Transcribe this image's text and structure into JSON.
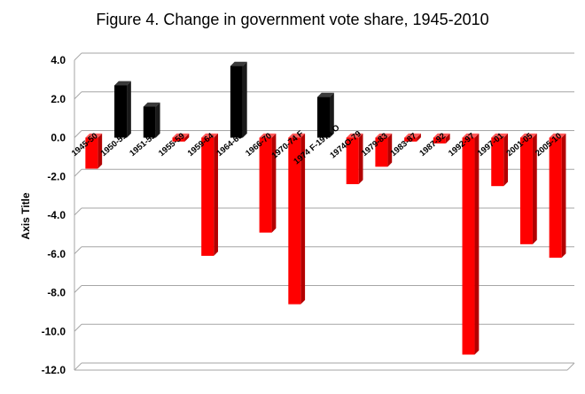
{
  "chart_data": {
    "type": "bar",
    "title": "Figure 4. Change in government vote share, 1945-2010",
    "xlabel": "",
    "ylabel": "Axis Title",
    "ylim": [
      -12,
      4
    ],
    "ytick_step": 2,
    "yticks": [
      "4.0",
      "2.0",
      "0.0",
      "-2.0",
      "-4.0",
      "-6.0",
      "-8.0",
      "-10.0",
      "-12.0"
    ],
    "grid": true,
    "legend": "none",
    "rendering": "3d-bar",
    "categories": [
      "1945-50",
      "1950-51",
      "1951-55",
      "1955-59",
      "1959-64",
      "1964-66",
      "1966-70",
      "1970-74 F",
      "1974 F-1974 O",
      "1974O-79",
      "1979-83",
      "1983-87",
      "1987-92",
      "1992-97",
      "1997-01",
      "2001-05",
      "2005-10"
    ],
    "values": [
      -1.6,
      2.7,
      1.6,
      -0.2,
      -6.1,
      3.7,
      -4.9,
      -8.6,
      2.1,
      -2.4,
      -1.5,
      -0.2,
      -0.3,
      -11.2,
      -2.5,
      -5.5,
      -6.2
    ],
    "colors": {
      "positive": "#000000",
      "negative": "#ff0000",
      "grid": "#a6a6a6"
    }
  }
}
